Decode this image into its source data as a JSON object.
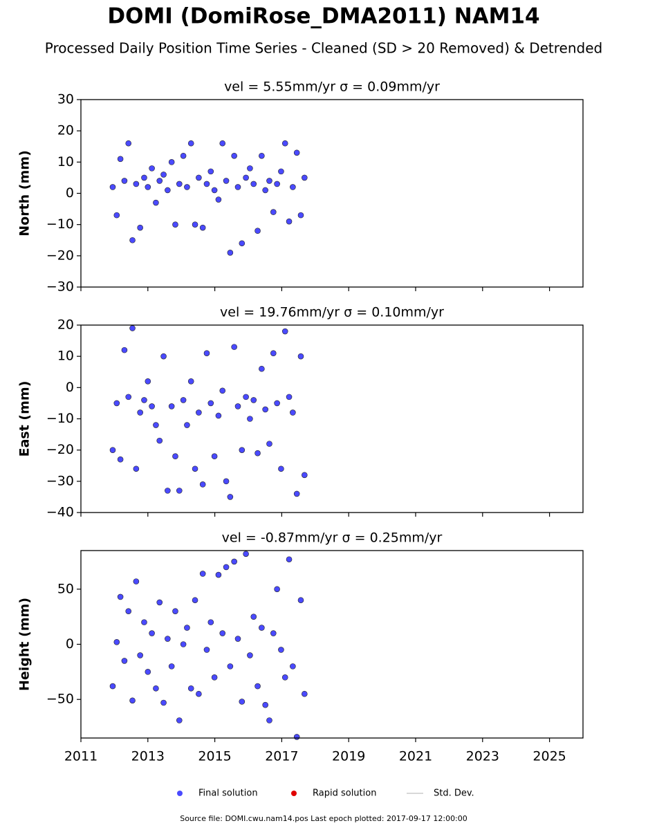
{
  "title": "DOMI (DomiRose_DMA2011) NAM14",
  "subtitle": "Processed Daily Position Time Series - Cleaned (SD > 20 Removed) & Detrended",
  "legend": [
    {
      "name": "Final solution",
      "color": "#4a4aff"
    },
    {
      "name": "Rapid solution",
      "color": "#e00000"
    },
    {
      "name": "Std. Dev.",
      "color": "#cccccc"
    }
  ],
  "footer": "Source file: DOMI.cwu.nam14.pos  Last epoch plotted: 2017-09-17 12:00:00",
  "chart_data": [
    {
      "type": "scatter",
      "title": "vel = 5.55mm/yr   σ = 0.09mm/yr",
      "ylabel": "North (mm)",
      "x": [
        2011.95,
        2012.07,
        2012.18,
        2012.3,
        2012.42,
        2012.54,
        2012.65,
        2012.77,
        2012.89,
        2013.0,
        2013.12,
        2013.24,
        2013.35,
        2013.47,
        2013.59,
        2013.71,
        2013.82,
        2013.94,
        2014.06,
        2014.17,
        2014.29,
        2014.41,
        2014.52,
        2014.64,
        2014.76,
        2014.88,
        2014.99,
        2015.11,
        2015.23,
        2015.34,
        2015.46,
        2015.58,
        2015.69,
        2015.81,
        2015.93,
        2016.05,
        2016.16,
        2016.28,
        2016.4,
        2016.51,
        2016.63,
        2016.75,
        2016.86,
        2016.98,
        2017.1,
        2017.22,
        2017.33,
        2017.45,
        2017.57,
        2017.68
      ],
      "series": [
        {
          "color": "#4a4aff",
          "values": [
            2,
            -7,
            11,
            4,
            16,
            -15,
            3,
            -11,
            5,
            2,
            8,
            -3,
            4,
            6,
            1,
            10,
            -10,
            3,
            12,
            2,
            16,
            -10,
            5,
            -11,
            3,
            7,
            1,
            -2,
            16,
            4,
            -19,
            12,
            2,
            -16,
            5,
            8,
            3,
            -12,
            12,
            1,
            4,
            -6,
            3,
            7,
            16,
            -9,
            2,
            13,
            -7,
            5
          ]
        }
      ],
      "xlim": [
        2011,
        2026
      ],
      "xticks": [
        2011,
        2013,
        2015,
        2017,
        2019,
        2021,
        2023,
        2025
      ],
      "ylim": [
        -30,
        30
      ],
      "yticks": [
        {
          "value": -30,
          "label": "−30"
        },
        {
          "value": -20,
          "label": "−20"
        },
        {
          "value": -10,
          "label": "−10"
        },
        0,
        10,
        20,
        30
      ]
    },
    {
      "type": "scatter",
      "title": "vel = 19.76mm/yr   σ = 0.10mm/yr",
      "ylabel": "East (mm)",
      "x": [
        2011.95,
        2012.07,
        2012.18,
        2012.3,
        2012.42,
        2012.54,
        2012.65,
        2012.77,
        2012.89,
        2013.0,
        2013.12,
        2013.24,
        2013.35,
        2013.47,
        2013.59,
        2013.71,
        2013.82,
        2013.94,
        2014.06,
        2014.17,
        2014.29,
        2014.41,
        2014.52,
        2014.64,
        2014.76,
        2014.88,
        2014.99,
        2015.11,
        2015.23,
        2015.34,
        2015.46,
        2015.58,
        2015.69,
        2015.81,
        2015.93,
        2016.05,
        2016.16,
        2016.28,
        2016.4,
        2016.51,
        2016.63,
        2016.75,
        2016.86,
        2016.98,
        2017.1,
        2017.22,
        2017.33,
        2017.45,
        2017.57,
        2017.68
      ],
      "series": [
        {
          "color": "#4a4aff",
          "values": [
            -20,
            -5,
            -23,
            12,
            -3,
            19,
            -26,
            -8,
            -4,
            2,
            -6,
            -12,
            -17,
            10,
            -33,
            -6,
            -22,
            -33,
            -4,
            -12,
            2,
            -26,
            -8,
            -31,
            11,
            -5,
            -22,
            -9,
            -1,
            -30,
            -35,
            13,
            -6,
            -20,
            -3,
            -10,
            -4,
            -21,
            6,
            -7,
            -18,
            11,
            -5,
            -26,
            18,
            -3,
            -8,
            -34,
            10,
            -28
          ]
        }
      ],
      "xlim": [
        2011,
        2026
      ],
      "xticks": [
        2011,
        2013,
        2015,
        2017,
        2019,
        2021,
        2023,
        2025
      ],
      "ylim": [
        -40,
        20
      ],
      "yticks": [
        {
          "value": -40,
          "label": "−40"
        },
        {
          "value": -30,
          "label": "−30"
        },
        {
          "value": -20,
          "label": "−20"
        },
        {
          "value": -10,
          "label": "−10"
        },
        0,
        10,
        20
      ]
    },
    {
      "type": "scatter",
      "title": "vel = -0.87mm/yr   σ = 0.25mm/yr",
      "ylabel": "Height (mm)",
      "x": [
        2011.95,
        2012.07,
        2012.18,
        2012.3,
        2012.42,
        2012.54,
        2012.65,
        2012.77,
        2012.89,
        2013.0,
        2013.12,
        2013.24,
        2013.35,
        2013.47,
        2013.59,
        2013.71,
        2013.82,
        2013.94,
        2014.06,
        2014.17,
        2014.29,
        2014.41,
        2014.52,
        2014.64,
        2014.76,
        2014.88,
        2014.99,
        2015.11,
        2015.23,
        2015.34,
        2015.46,
        2015.58,
        2015.69,
        2015.81,
        2015.93,
        2016.05,
        2016.16,
        2016.28,
        2016.4,
        2016.51,
        2016.63,
        2016.75,
        2016.86,
        2016.98,
        2017.1,
        2017.22,
        2017.33,
        2017.45,
        2017.57,
        2017.68
      ],
      "series": [
        {
          "color": "#4a4aff",
          "values": [
            -38,
            2,
            43,
            -15,
            30,
            -51,
            57,
            -10,
            20,
            -25,
            10,
            -40,
            38,
            -53,
            5,
            -20,
            30,
            -69,
            0,
            15,
            -40,
            40,
            -45,
            64,
            -5,
            20,
            -30,
            63,
            10,
            70,
            -20,
            75,
            5,
            -52,
            82,
            -10,
            25,
            -38,
            15,
            -55,
            -69,
            10,
            50,
            -5,
            -30,
            77,
            -20,
            -84,
            40,
            -45
          ]
        }
      ],
      "xlim": [
        2011,
        2026
      ],
      "xticks": [
        2011,
        2013,
        2015,
        2017,
        2019,
        2021,
        2023,
        2025
      ],
      "ylim": [
        -85,
        85
      ],
      "yticks": [
        {
          "value": -50,
          "label": "−50"
        },
        0,
        50
      ]
    }
  ]
}
